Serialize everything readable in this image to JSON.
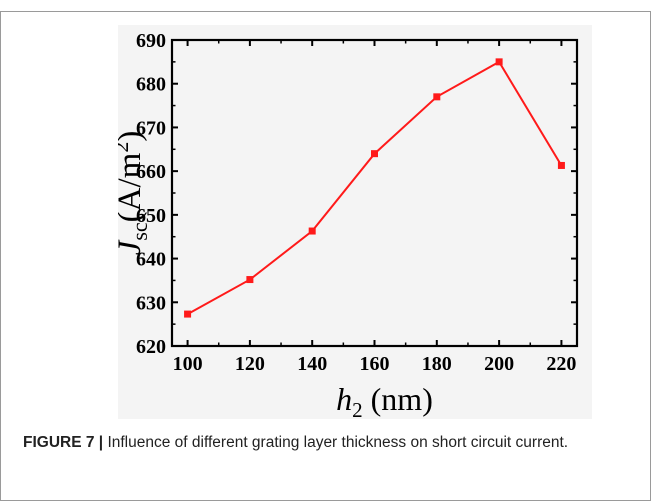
{
  "colors": {
    "series_line": "#ff1a1a",
    "axis": "#000000",
    "plot_background": "#f4f4f4",
    "caption_label": "#222222"
  },
  "caption": {
    "label": "FIGURE 7 |",
    "text": " Influence of different grating layer thickness on short circuit current."
  },
  "chart_data": {
    "type": "line",
    "title": "",
    "xlabel": {
      "main": "h",
      "sub": "2",
      "unit": "(nm)"
    },
    "ylabel": {
      "main": "J",
      "sub": "sc",
      "unit": "(A/m",
      "sup": "2",
      "close": ")"
    },
    "xlim": [
      95,
      225
    ],
    "ylim": [
      620,
      690
    ],
    "x_ticks": [
      100,
      120,
      140,
      160,
      180,
      200,
      220
    ],
    "y_ticks": [
      620,
      630,
      640,
      650,
      660,
      670,
      680,
      690
    ],
    "series": [
      {
        "x": [
          100,
          120,
          140,
          160,
          180,
          200,
          220
        ],
        "values": [
          627.3,
          635.2,
          646.3,
          664.0,
          677.0,
          685.0,
          661.3
        ],
        "marker": "square"
      }
    ],
    "grid": false,
    "legend": "none"
  }
}
